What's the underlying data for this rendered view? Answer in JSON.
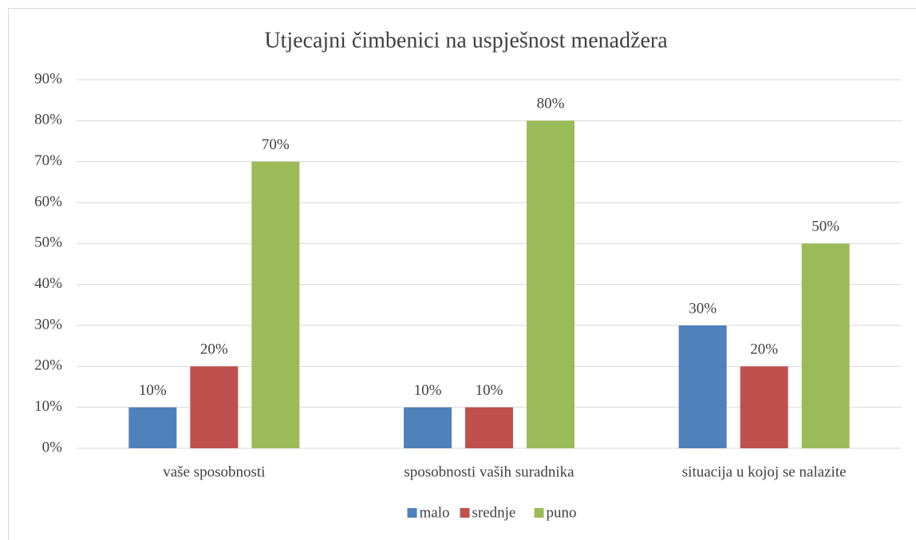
{
  "chart_data": {
    "type": "bar",
    "title": "Utjecajni čimbenici na uspješnost menadžera",
    "categories": [
      "vaše sposobnosti",
      "sposobnosti vaših suradnika",
      "situacija u kojoj se nalazite"
    ],
    "series": [
      {
        "name": "malo",
        "color": "#4f81bd",
        "values": [
          10,
          10,
          30
        ],
        "value_labels": [
          "10%",
          "10%",
          "30%"
        ]
      },
      {
        "name": "srednje",
        "color": "#c0504d",
        "values": [
          20,
          10,
          20
        ],
        "value_labels": [
          "20%",
          "10%",
          "20%"
        ]
      },
      {
        "name": "puno",
        "color": "#9bbb59",
        "values": [
          70,
          80,
          50
        ],
        "value_labels": [
          "70%",
          "80%",
          "50%"
        ]
      }
    ],
    "ylim": [
      0,
      90
    ],
    "yticks": [
      {
        "value": 0,
        "label": "0%"
      },
      {
        "value": 10,
        "label": "10%"
      },
      {
        "value": 20,
        "label": "20%"
      },
      {
        "value": 30,
        "label": "30%"
      },
      {
        "value": 40,
        "label": "40%"
      },
      {
        "value": 50,
        "label": "50%"
      },
      {
        "value": 60,
        "label": "60%"
      },
      {
        "value": 70,
        "label": "70%"
      },
      {
        "value": 80,
        "label": "80%"
      },
      {
        "value": 90,
        "label": "90%"
      }
    ],
    "grid": true,
    "legend": "bottom"
  }
}
